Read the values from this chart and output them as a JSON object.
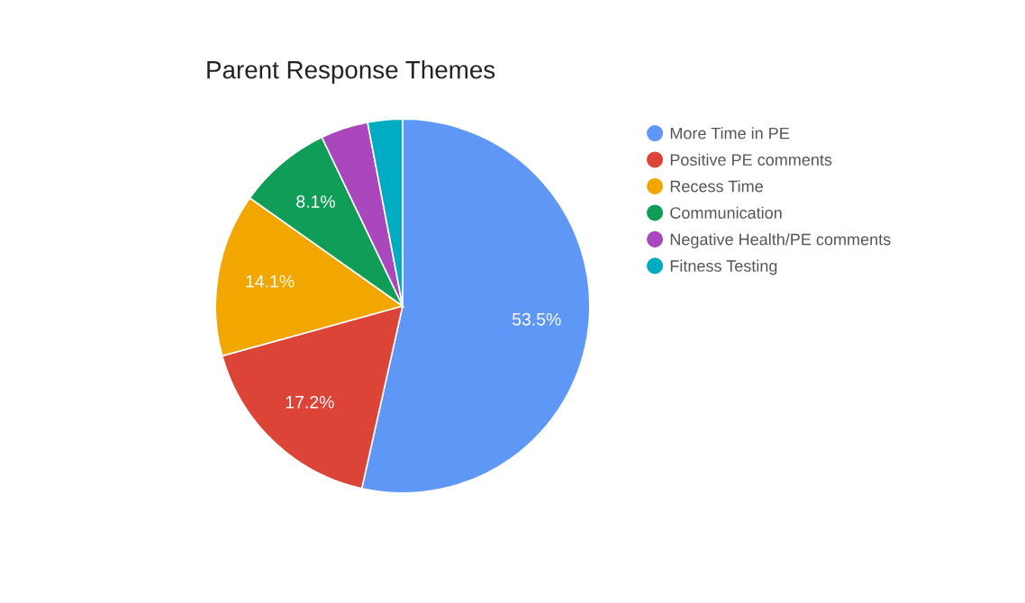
{
  "chart_data": {
    "type": "pie",
    "title": "Parent Response Themes",
    "categories": [
      "More Time in PE",
      "Positive PE comments",
      "Recess Time",
      "Communication",
      "Negative Health/PE comments",
      "Fitness Testing"
    ],
    "values": [
      53.5,
      17.2,
      14.1,
      8.1,
      4.1,
      3.0
    ],
    "value_labels": [
      "53.5%",
      "17.2%",
      "14.1%",
      "8.1%",
      null,
      null
    ],
    "colors": [
      "#5e97f6",
      "#db4437",
      "#f2a600",
      "#0f9d58",
      "#ab47bc",
      "#00acc1"
    ],
    "legend": "right"
  }
}
